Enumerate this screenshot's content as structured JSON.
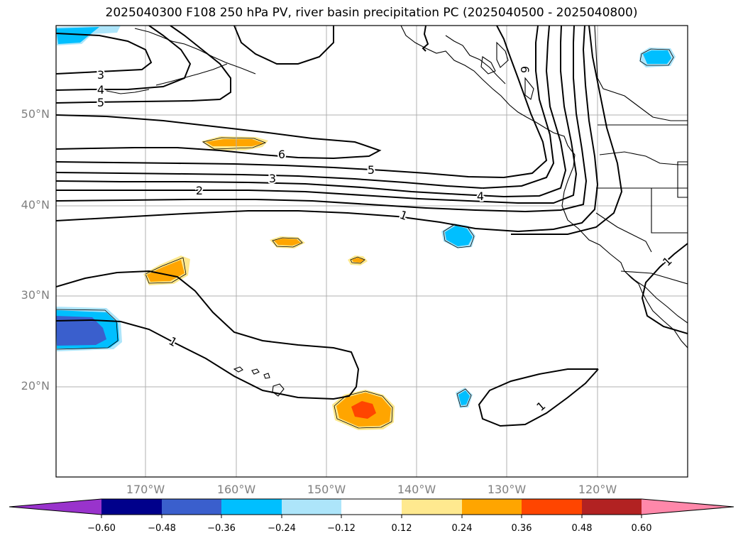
{
  "title": "2025040300 F108 250 hPa PV, river basin precipitation PC (2025040500 - 2025040800)",
  "lat_labels": [
    "50°N",
    "40°N",
    "30°N",
    "20°N"
  ],
  "lon_labels": [
    "170°W",
    "160°W",
    "150°W",
    "140°W",
    "130°W",
    "120°W"
  ],
  "colorbar": {
    "ticks": [
      "−0.60",
      "−0.48",
      "−0.36",
      "−0.24",
      "−0.12",
      "0.12",
      "0.24",
      "0.36",
      "0.48",
      "0.60"
    ],
    "colors": [
      "#9933cc",
      "#00008b",
      "#3a5fcd",
      "#00bfff",
      "#ade5fa",
      "#ffffff",
      "#ffe98f",
      "#ffa500",
      "#ff4500",
      "#b22222",
      "#ff88aa"
    ]
  },
  "contour_labels": [
    "3",
    "4",
    "5",
    "6",
    "5",
    "3",
    "2",
    "4",
    "1",
    "6",
    "1",
    "1",
    "1"
  ]
}
